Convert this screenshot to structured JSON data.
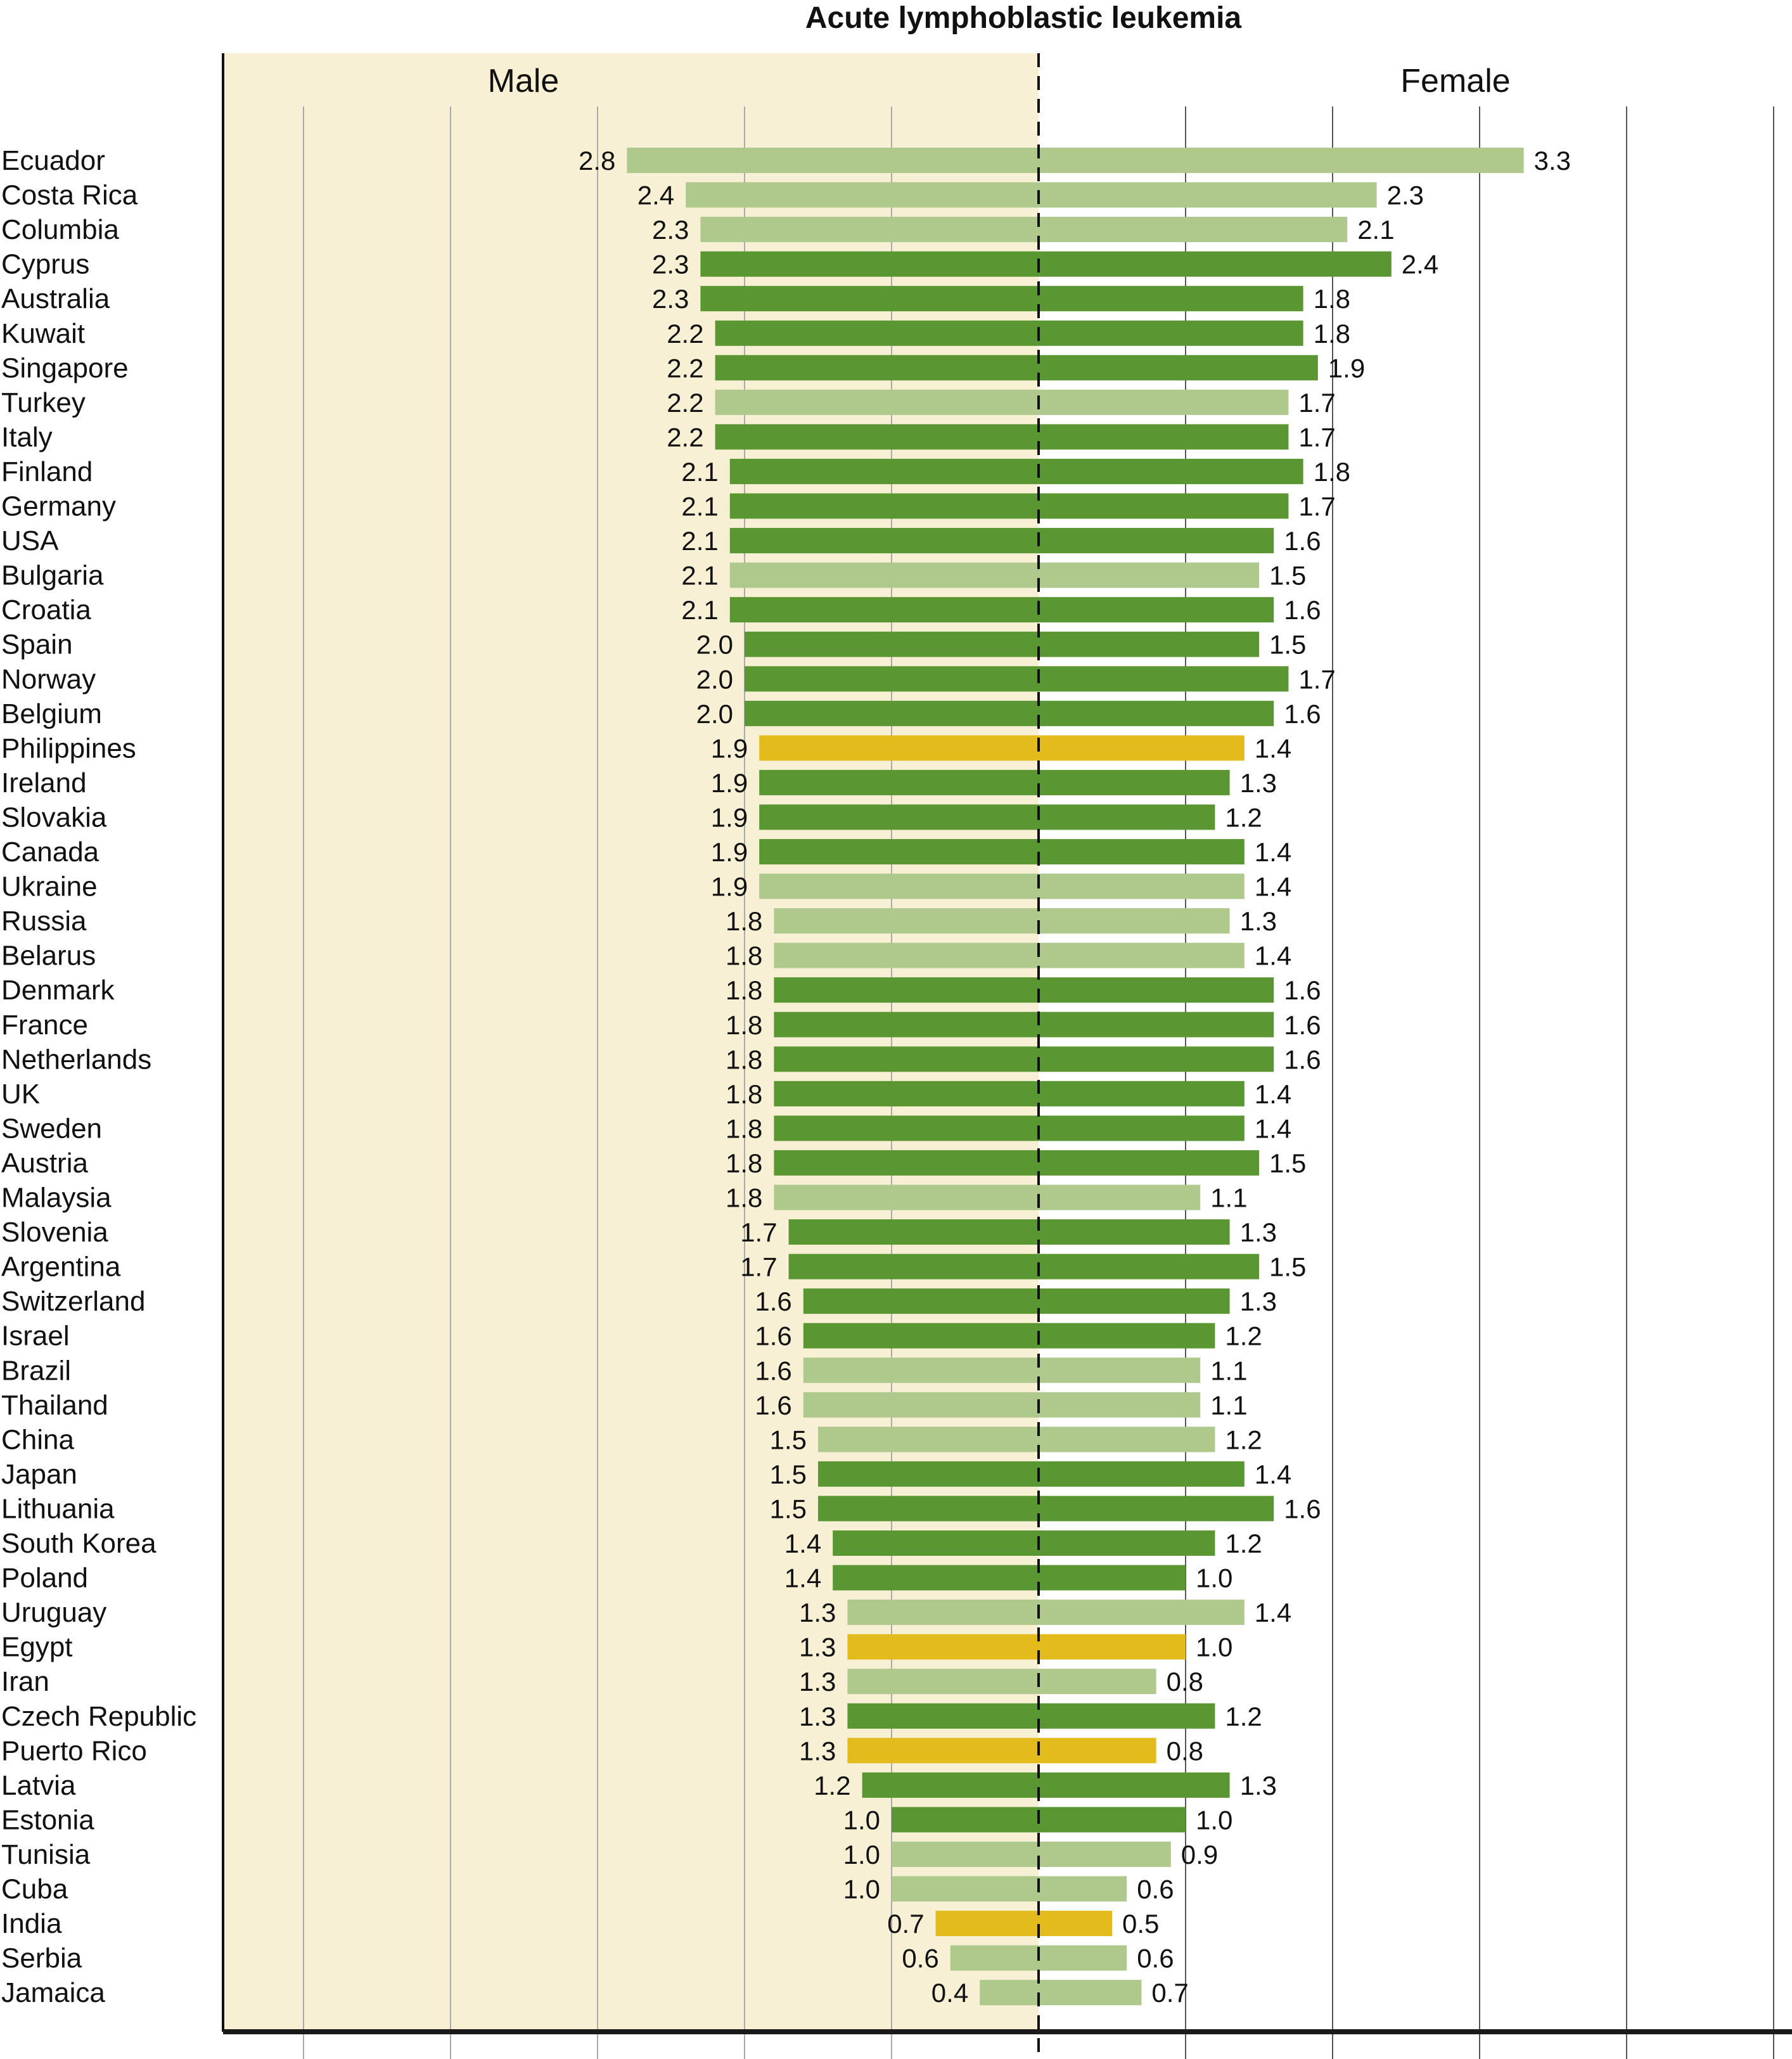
{
  "chart_data": {
    "type": "bar",
    "orientation": "horizontal-diverging",
    "title": "Acute lymphoblastic leukemia",
    "panels": {
      "left": "Male",
      "right": "Female"
    },
    "xlabel": "",
    "ylabel": "",
    "xlim_left": [
      0,
      5.5
    ],
    "xlim_right": [
      0,
      5.5
    ],
    "grid": true,
    "gridline_interval": 1.0,
    "legend": "none",
    "colors": {
      "dark_green": "#5a9632",
      "light_green": "#afc98d",
      "gold": "#e3bb1c",
      "male_background": "#f7f0d5"
    },
    "categories": [
      "Ecuador",
      "Costa Rica",
      "Columbia",
      "Cyprus",
      "Australia",
      "Kuwait",
      "Singapore",
      "Turkey",
      "Italy",
      "Finland",
      "Germany",
      "USA",
      "Bulgaria",
      "Croatia",
      "Spain",
      "Norway",
      "Belgium",
      "Philippines",
      "Ireland",
      "Slovakia",
      "Canada",
      "Ukraine",
      "Russia",
      "Belarus",
      "Denmark",
      "France",
      "Netherlands",
      "UK",
      "Sweden",
      "Austria",
      "Malaysia",
      "Slovenia",
      "Argentina",
      "Switzerland",
      "Israel",
      "Brazil",
      "Thailand",
      "China",
      "Japan",
      "Lithuania",
      "South Korea",
      "Poland",
      "Uruguay",
      "Egypt",
      "Iran",
      "Czech Republic",
      "Puerto Rico",
      "Latvia",
      "Estonia",
      "Tunisia",
      "Cuba",
      "India",
      "Serbia",
      "Jamaica"
    ],
    "series": [
      {
        "name": "Male",
        "values": [
          2.8,
          2.4,
          2.3,
          2.3,
          2.3,
          2.2,
          2.2,
          2.2,
          2.2,
          2.1,
          2.1,
          2.1,
          2.1,
          2.1,
          2.0,
          2.0,
          2.0,
          1.9,
          1.9,
          1.9,
          1.9,
          1.9,
          1.8,
          1.8,
          1.8,
          1.8,
          1.8,
          1.8,
          1.8,
          1.8,
          1.8,
          1.7,
          1.7,
          1.6,
          1.6,
          1.6,
          1.6,
          1.5,
          1.5,
          1.5,
          1.4,
          1.4,
          1.3,
          1.3,
          1.3,
          1.3,
          1.3,
          1.2,
          1.0,
          1.0,
          1.0,
          0.7,
          0.6,
          0.4
        ]
      },
      {
        "name": "Female",
        "values": [
          3.3,
          2.3,
          2.1,
          2.4,
          1.8,
          1.8,
          1.9,
          1.7,
          1.7,
          1.8,
          1.7,
          1.6,
          1.5,
          1.6,
          1.5,
          1.7,
          1.6,
          1.4,
          1.3,
          1.2,
          1.4,
          1.4,
          1.3,
          1.4,
          1.6,
          1.6,
          1.6,
          1.4,
          1.4,
          1.5,
          1.1,
          1.3,
          1.5,
          1.3,
          1.2,
          1.1,
          1.1,
          1.2,
          1.4,
          1.6,
          1.2,
          1.0,
          1.4,
          1.0,
          0.8,
          1.2,
          0.8,
          1.3,
          1.0,
          0.9,
          0.6,
          0.5,
          0.6,
          0.7
        ]
      }
    ],
    "bar_color_group": [
      "light_green",
      "light_green",
      "light_green",
      "dark_green",
      "dark_green",
      "dark_green",
      "dark_green",
      "light_green",
      "dark_green",
      "dark_green",
      "dark_green",
      "dark_green",
      "light_green",
      "dark_green",
      "dark_green",
      "dark_green",
      "dark_green",
      "gold",
      "dark_green",
      "dark_green",
      "dark_green",
      "light_green",
      "light_green",
      "light_green",
      "dark_green",
      "dark_green",
      "dark_green",
      "dark_green",
      "dark_green",
      "dark_green",
      "light_green",
      "dark_green",
      "dark_green",
      "dark_green",
      "dark_green",
      "light_green",
      "light_green",
      "light_green",
      "dark_green",
      "dark_green",
      "dark_green",
      "dark_green",
      "light_green",
      "gold",
      "light_green",
      "dark_green",
      "gold",
      "dark_green",
      "dark_green",
      "light_green",
      "light_green",
      "gold",
      "light_green",
      "light_green"
    ]
  }
}
